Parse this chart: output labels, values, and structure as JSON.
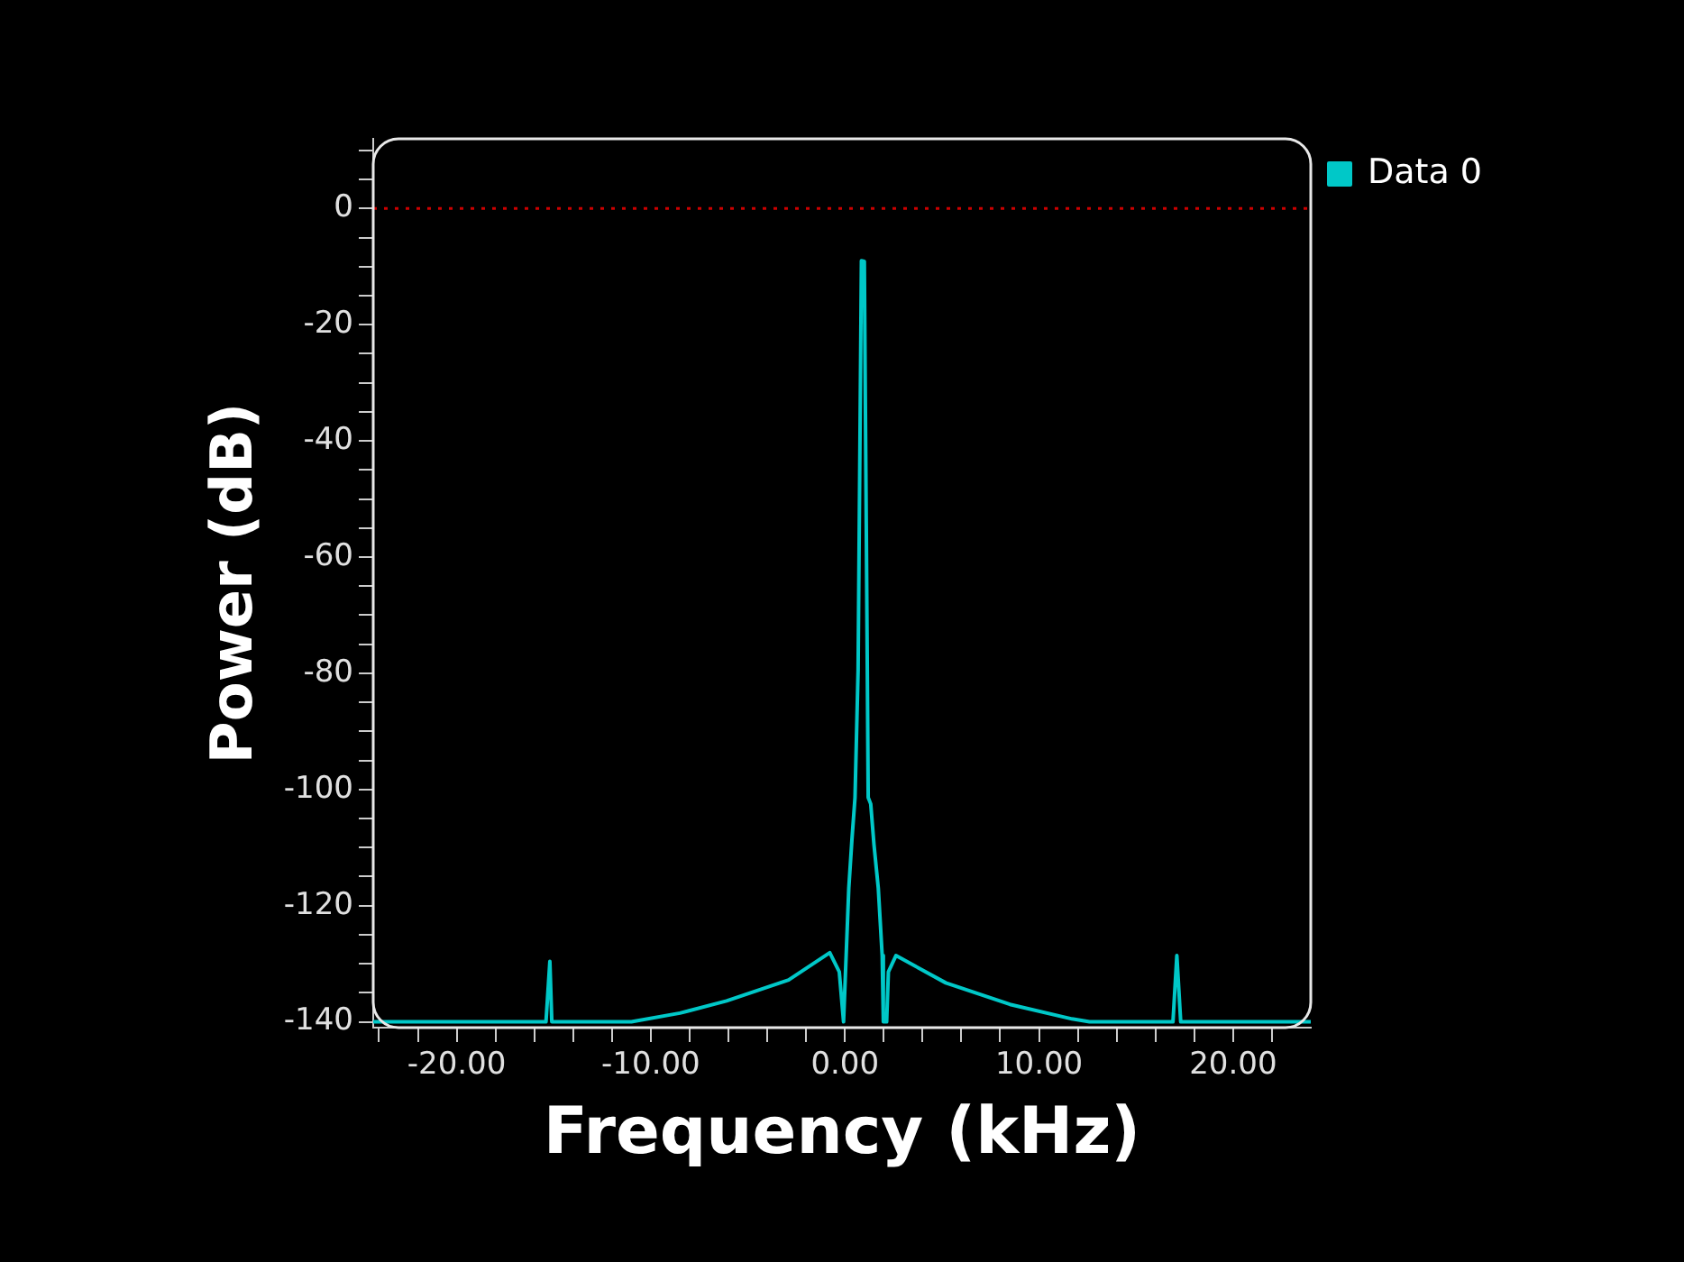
{
  "chart_data": {
    "type": "line",
    "xlabel": "Frequency (kHz)",
    "ylabel": "Power (dB)",
    "x": [
      -24.3,
      -15.4,
      -15.2,
      -15.1,
      -11.0,
      -8.5,
      -6.1,
      -2.9,
      -0.78,
      -0.29,
      -0.07,
      0.2,
      0.36,
      0.52,
      0.68,
      0.85,
      1.0,
      1.1,
      1.2,
      1.33,
      1.5,
      1.72,
      1.92,
      1.98,
      2.15,
      2.24,
      2.63,
      5.2,
      8.5,
      11.7,
      12.6,
      16.9,
      17.1,
      17.3,
      24.0
    ],
    "series": [
      {
        "name": "Data 0",
        "color": "#00c8c8",
        "values": [
          -140,
          -140,
          -129.6,
          -140,
          -140,
          -138.5,
          -136.4,
          -132.8,
          -128.1,
          -131.4,
          -140,
          -117,
          -108.7,
          -101.4,
          -79.4,
          -9.0,
          -9.1,
          -54.3,
          -101.4,
          -102.5,
          -109.6,
          -117,
          -128.6,
          -140,
          -140,
          -131.4,
          -128.6,
          -133.3,
          -137,
          -139.5,
          -140,
          -140,
          -128.6,
          -140,
          -140
        ]
      }
    ],
    "xlim": [
      -24.3,
      24.0
    ],
    "ylim": [
      -141,
      12
    ],
    "xticks": [
      {
        "value": -24,
        "label": null
      },
      {
        "value": -22,
        "label": null
      },
      {
        "value": -20,
        "label": "-20.00"
      },
      {
        "value": -18,
        "label": null
      },
      {
        "value": -16,
        "label": null
      },
      {
        "value": -14,
        "label": null
      },
      {
        "value": -12,
        "label": null
      },
      {
        "value": -10,
        "label": "-10.00"
      },
      {
        "value": -8,
        "label": null
      },
      {
        "value": -6,
        "label": null
      },
      {
        "value": -4,
        "label": null
      },
      {
        "value": -2,
        "label": null
      },
      {
        "value": 0,
        "label": "0.00"
      },
      {
        "value": 2,
        "label": null
      },
      {
        "value": 4,
        "label": null
      },
      {
        "value": 6,
        "label": null
      },
      {
        "value": 8,
        "label": null
      },
      {
        "value": 10,
        "label": "10.00"
      },
      {
        "value": 12,
        "label": null
      },
      {
        "value": 14,
        "label": null
      },
      {
        "value": 16,
        "label": null
      },
      {
        "value": 18,
        "label": null
      },
      {
        "value": 20,
        "label": "20.00"
      },
      {
        "value": 22,
        "label": null
      }
    ],
    "yticks": [
      -140,
      {
        "value": -135,
        "label": null
      },
      {
        "value": -130,
        "label": null
      },
      {
        "value": -125,
        "label": null
      },
      -120,
      {
        "value": -115,
        "label": null
      },
      {
        "value": -110,
        "label": null
      },
      {
        "value": -105,
        "label": null
      },
      -100,
      {
        "value": -95,
        "label": null
      },
      {
        "value": -90,
        "label": null
      },
      {
        "value": -85,
        "label": null
      },
      -80,
      {
        "value": -75,
        "label": null
      },
      {
        "value": -70,
        "label": null
      },
      {
        "value": -65,
        "label": null
      },
      -60,
      {
        "value": -55,
        "label": null
      },
      {
        "value": -50,
        "label": null
      },
      {
        "value": -45,
        "label": null
      },
      -40,
      {
        "value": -35,
        "label": null
      },
      {
        "value": -30,
        "label": null
      },
      {
        "value": -25,
        "label": null
      },
      -20,
      {
        "value": -15,
        "label": null
      },
      {
        "value": -10,
        "label": null
      },
      {
        "value": -5,
        "label": null
      },
      0,
      {
        "value": 5,
        "label": null
      },
      {
        "value": 10,
        "label": null
      }
    ],
    "ref_lines": [
      {
        "axis": "y",
        "value": 0,
        "color": "#cc0000",
        "line_style": "dotted"
      }
    ],
    "legend": "top right",
    "grid": false,
    "marker": "none",
    "line_style": "solid"
  }
}
